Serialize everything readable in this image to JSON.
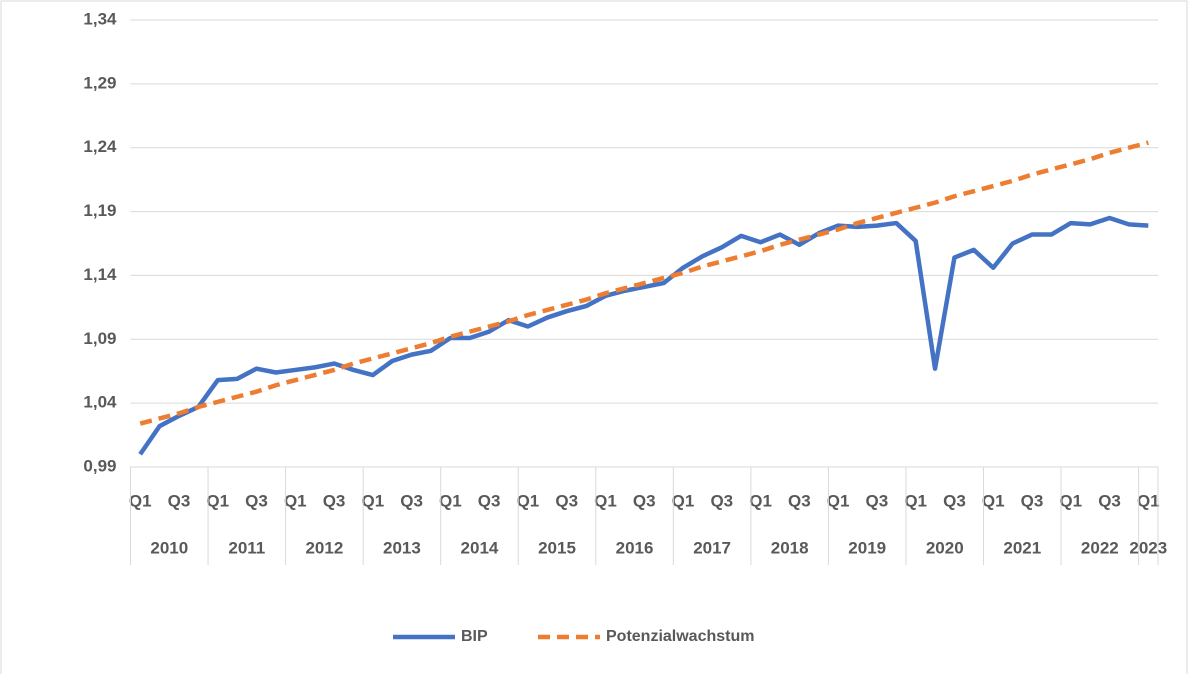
{
  "chart_data": {
    "type": "line",
    "categories": [
      "Q1",
      null,
      "Q3",
      null,
      "Q1",
      null,
      "Q3",
      null,
      "Q1",
      null,
      "Q3",
      null,
      "Q1",
      null,
      "Q3",
      null,
      "Q1",
      null,
      "Q3",
      null,
      "Q1",
      null,
      "Q3",
      null,
      "Q1",
      null,
      "Q3",
      null,
      "Q1",
      null,
      "Q3",
      null,
      "Q1",
      null,
      "Q3",
      null,
      "Q1",
      null,
      "Q3",
      null,
      "Q1",
      null,
      "Q3",
      null,
      "Q1",
      null,
      "Q3",
      null,
      "Q1",
      null,
      "Q3",
      null,
      "Q1"
    ],
    "x_groups": [
      {
        "label": "2010",
        "span": 4
      },
      {
        "label": "2011",
        "span": 4
      },
      {
        "label": "2012",
        "span": 4
      },
      {
        "label": "2013",
        "span": 4
      },
      {
        "label": "2014",
        "span": 4
      },
      {
        "label": "2015",
        "span": 4
      },
      {
        "label": "2016",
        "span": 4
      },
      {
        "label": "2017",
        "span": 4
      },
      {
        "label": "2018",
        "span": 4
      },
      {
        "label": "2019",
        "span": 4
      },
      {
        "label": "2020",
        "span": 4
      },
      {
        "label": "2021",
        "span": 4
      },
      {
        "label": "2022",
        "span": 4
      },
      {
        "label": "2023",
        "span": 1
      }
    ],
    "series": [
      {
        "name": "BIP",
        "color": "#4472c4",
        "dash": false,
        "values": [
          1.0,
          1.022,
          1.03,
          1.037,
          1.058,
          1.059,
          1.067,
          1.064,
          1.066,
          1.068,
          1.071,
          1.066,
          1.062,
          1.073,
          1.078,
          1.081,
          1.091,
          1.091,
          1.096,
          1.105,
          1.1,
          1.107,
          1.112,
          1.116,
          1.124,
          1.128,
          1.131,
          1.134,
          1.146,
          1.155,
          1.162,
          1.171,
          1.166,
          1.172,
          1.164,
          1.173,
          1.179,
          1.178,
          1.179,
          1.181,
          1.167,
          1.067,
          1.154,
          1.16,
          1.146,
          1.165,
          1.172,
          1.172,
          1.181,
          1.18,
          1.185,
          1.18,
          1.179
        ]
      },
      {
        "name": "Potenzialwachstum",
        "color": "#ed7d31",
        "dash": true,
        "values": [
          1.024,
          1.028,
          1.032,
          1.037,
          1.041,
          1.045,
          1.049,
          1.054,
          1.058,
          1.062,
          1.066,
          1.071,
          1.075,
          1.079,
          1.083,
          1.087,
          1.092,
          1.096,
          1.1,
          1.104,
          1.109,
          1.113,
          1.117,
          1.121,
          1.126,
          1.13,
          1.134,
          1.138,
          1.142,
          1.147,
          1.151,
          1.155,
          1.159,
          1.164,
          1.168,
          1.172,
          1.176,
          1.181,
          1.185,
          1.189,
          1.193,
          1.197,
          1.202,
          1.206,
          1.21,
          1.214,
          1.219,
          1.223,
          1.227,
          1.231,
          1.236,
          1.24,
          1.244
        ]
      }
    ],
    "ylim": [
      0.99,
      1.34
    ],
    "yticks": [
      {
        "value": 0.99,
        "label": "0,99"
      },
      {
        "value": 1.04,
        "label": "1,04"
      },
      {
        "value": 1.09,
        "label": "1,09"
      },
      {
        "value": 1.14,
        "label": "1,14"
      },
      {
        "value": 1.19,
        "label": "1,19"
      },
      {
        "value": 1.24,
        "label": "1,24"
      },
      {
        "value": 1.29,
        "label": "1,29"
      },
      {
        "value": 1.34,
        "label": "1,34"
      }
    ],
    "grid": true,
    "legend": "bottom"
  }
}
